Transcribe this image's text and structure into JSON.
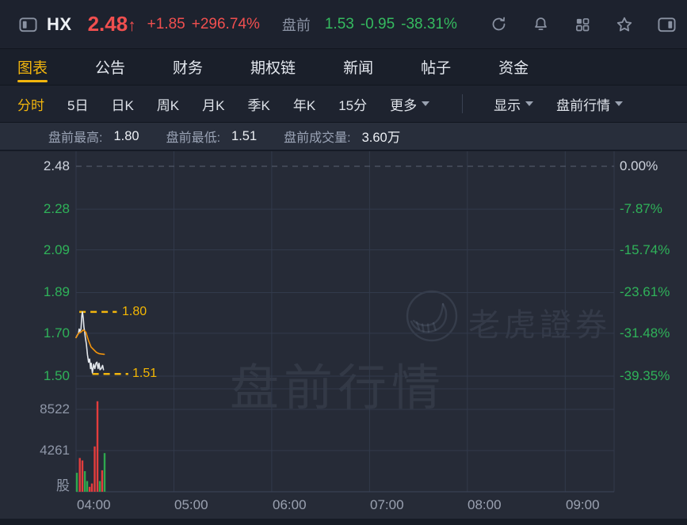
{
  "colors": {
    "red": "#e43d3d",
    "green": "#2ea84e",
    "accent_yellow": "#f2b50d",
    "price_line": "#e3e7ec",
    "avg_line": "#f0930c",
    "grid": "#323a4b",
    "grid_strong": "#3c445a",
    "zero_line": "#5a6171",
    "up_text_red": "#f04f4f",
    "down_text_green": "#35ba5f"
  },
  "header": {
    "symbol": "HX",
    "price": "2.48",
    "arrow": "↑",
    "change": "+1.85",
    "change_pct": "+296.74%",
    "session_label": "盘前",
    "session_price": "1.53",
    "session_change": "-0.95",
    "session_change_pct": "-38.31%",
    "icons": [
      "panel-left-icon",
      "refresh-icon",
      "bell-icon",
      "grid-apps-icon",
      "star-icon",
      "panel-right-icon"
    ]
  },
  "tabs": {
    "active": "图表",
    "items": [
      "图表",
      "公告",
      "财务",
      "期权链",
      "新闻",
      "帖子",
      "资金"
    ]
  },
  "subtabs": {
    "active": "分时",
    "items": [
      "分时",
      "5日",
      "日K",
      "周K",
      "月K",
      "季K",
      "年K",
      "15分"
    ],
    "more_label": "更多",
    "display_label": "显示",
    "session_menu_label": "盘前行情"
  },
  "stats": {
    "high_label": "盘前最高:",
    "high_value": "1.80",
    "low_label": "盘前最低:",
    "low_value": "1.51",
    "volume_label": "盘前成交量:",
    "volume_value": "3.60万"
  },
  "watermark": {
    "text": "盘前行情",
    "brand": "老虎證券",
    "brand_logo": "tiger-logo-icon"
  },
  "chart_data": {
    "type": "line",
    "title": "盘前分时 (pre-market intraday)",
    "x_axis": {
      "labels": [
        "04:00",
        "05:00",
        "06:00",
        "07:00",
        "08:00",
        "09:00"
      ],
      "start": "04:00",
      "end": "09:30",
      "span_minutes": 330
    },
    "price_axis": {
      "max": 2.48,
      "min": 1.5,
      "prev_close": 2.48,
      "ticks": [
        {
          "label": "2.48",
          "pct": "0.00%"
        },
        {
          "label": "2.28",
          "pct": "-7.87%"
        },
        {
          "label": "2.09",
          "pct": "-15.74%"
        },
        {
          "label": "1.89",
          "pct": "-23.61%"
        },
        {
          "label": "1.70",
          "pct": "-31.48%"
        },
        {
          "label": "1.50",
          "pct": "-39.35%"
        }
      ]
    },
    "volume_axis": {
      "ticks": [
        8522,
        4261
      ],
      "tick_labels": [
        "8522",
        "4261"
      ],
      "unit_label": "股",
      "max": 9400
    },
    "series": [
      {
        "name": "price",
        "points": [
          [
            0,
            1.68
          ],
          [
            0.7,
            1.69
          ],
          [
            1.5,
            1.7
          ],
          [
            1.9,
            1.72
          ],
          [
            2.4,
            1.71
          ],
          [
            3.0,
            1.72
          ],
          [
            3.5,
            1.78
          ],
          [
            3.9,
            1.8
          ],
          [
            4.4,
            1.77
          ],
          [
            4.8,
            1.73
          ],
          [
            5.2,
            1.71
          ],
          [
            5.7,
            1.68
          ],
          [
            6.3,
            1.65
          ],
          [
            7.0,
            1.6
          ],
          [
            7.7,
            1.565
          ],
          [
            8.3,
            1.58
          ],
          [
            8.9,
            1.535
          ],
          [
            9.3,
            1.56
          ],
          [
            10.0,
            1.515
          ],
          [
            10.8,
            1.555
          ],
          [
            11.5,
            1.535
          ],
          [
            12.2,
            1.56
          ],
          [
            12.8,
            1.565
          ],
          [
            13.5,
            1.535
          ],
          [
            14.1,
            1.56
          ],
          [
            14.7,
            1.53
          ],
          [
            15.4,
            1.535
          ],
          [
            16.3,
            1.55
          ],
          [
            16.8,
            1.53
          ]
        ]
      },
      {
        "name": "avg",
        "points": [
          [
            0,
            1.68
          ],
          [
            1.5,
            1.7
          ],
          [
            2.8,
            1.705
          ],
          [
            4.4,
            1.716
          ],
          [
            6.0,
            1.706
          ],
          [
            7.6,
            1.667
          ],
          [
            9.2,
            1.636
          ],
          [
            10.8,
            1.624
          ],
          [
            12.5,
            1.611
          ],
          [
            14.1,
            1.605
          ],
          [
            15.7,
            1.603
          ],
          [
            17.3,
            1.602
          ]
        ]
      }
    ],
    "volume_bars": [
      {
        "t": 0.5,
        "v": 1960,
        "c": "g"
      },
      {
        "t": 2.3,
        "v": 3490,
        "c": "r"
      },
      {
        "t": 3.9,
        "v": 3240,
        "c": "r"
      },
      {
        "t": 5.4,
        "v": 2130,
        "c": "g"
      },
      {
        "t": 6.8,
        "v": 1110,
        "c": "g"
      },
      {
        "t": 8.3,
        "v": 510,
        "c": "r"
      },
      {
        "t": 9.7,
        "v": 850,
        "c": "r"
      },
      {
        "t": 11.4,
        "v": 4690,
        "c": "r"
      },
      {
        "t": 13.1,
        "v": 9370,
        "c": "r"
      },
      {
        "t": 14.6,
        "v": 1110,
        "c": "g"
      },
      {
        "t": 16.0,
        "v": 2220,
        "c": "r"
      },
      {
        "t": 17.5,
        "v": 4000,
        "c": "g"
      }
    ],
    "markers": {
      "high": {
        "value": "1.80",
        "price": 1.8,
        "from_min": 2,
        "to_min": 25
      },
      "low": {
        "value": "1.51",
        "price": 1.51,
        "from_min": 10,
        "to_min": 32
      }
    }
  }
}
